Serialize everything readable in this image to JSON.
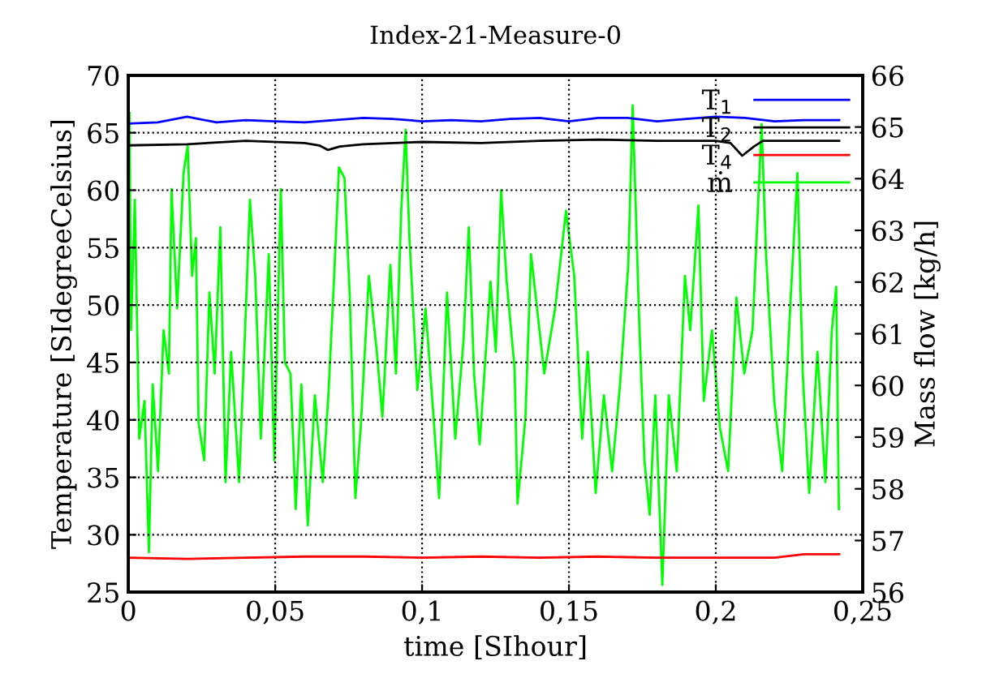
{
  "chart_data": {
    "type": "line",
    "title": "Index-21-Measure-0",
    "xlabel": "time [SIhour]",
    "ylabel": "Temperature [SIdegreeCelsius]",
    "y2label": "Mass flow [kg/h]",
    "xlim": [
      0,
      0.25
    ],
    "xticks": [
      0,
      {
        "value": 0.05,
        "label": "0,05"
      },
      {
        "value": 0.1,
        "label": "0,1"
      },
      {
        "value": 0.15,
        "label": "0,15"
      },
      {
        "value": 0.2,
        "label": "0,2"
      },
      {
        "value": 0.25,
        "label": "0,25"
      }
    ],
    "ylim": [
      25,
      70
    ],
    "yticks": [
      25,
      30,
      35,
      40,
      45,
      50,
      55,
      60,
      65,
      70
    ],
    "y2lim": [
      56,
      66
    ],
    "y2ticks": [
      56,
      57,
      58,
      59,
      60,
      61,
      62,
      63,
      64,
      65,
      66
    ],
    "grid": true,
    "legend": "top right",
    "marker": "none",
    "line_style": "solid",
    "series": [
      {
        "name": "T$_{1}$",
        "color": "#0000ff",
        "x": [
          0,
          0.01,
          0.02,
          0.03,
          0.04,
          0.05,
          0.06,
          0.07,
          0.08,
          0.09,
          0.1,
          0.11,
          0.12,
          0.13,
          0.14,
          0.15,
          0.16,
          0.17,
          0.18,
          0.19,
          0.2,
          0.21,
          0.22,
          0.23,
          0.242
        ],
        "values": [
          65.8,
          65.9,
          66.4,
          65.9,
          66.1,
          66.0,
          65.9,
          66.1,
          66.3,
          66.2,
          66.0,
          66.1,
          66.0,
          66.2,
          66.3,
          66.0,
          66.3,
          66.3,
          66.0,
          66.2,
          66.4,
          66.3,
          66.0,
          66.1,
          66.1
        ]
      },
      {
        "name": "T$_{2}$",
        "color": "#000000",
        "x": [
          0,
          0.02,
          0.04,
          0.06,
          0.065,
          0.068,
          0.072,
          0.08,
          0.1,
          0.12,
          0.14,
          0.16,
          0.18,
          0.2,
          0.205,
          0.209,
          0.213,
          0.216,
          0.22,
          0.242
        ],
        "values": [
          63.9,
          64.0,
          64.3,
          64.1,
          63.9,
          63.5,
          63.8,
          64.0,
          64.2,
          64.1,
          64.3,
          64.4,
          64.3,
          64.3,
          64.1,
          63.0,
          63.8,
          64.3,
          64.3,
          64.3
        ]
      },
      {
        "name": "T$_{4}$",
        "color": "#ff0000",
        "x": [
          0,
          0.02,
          0.04,
          0.06,
          0.08,
          0.1,
          0.12,
          0.14,
          0.16,
          0.18,
          0.2,
          0.22,
          0.23,
          0.242
        ],
        "values": [
          28.0,
          27.9,
          28.0,
          28.1,
          28.1,
          28.0,
          28.1,
          28.0,
          28.1,
          28.0,
          28.0,
          28.0,
          28.3,
          28.3
        ]
      },
      {
        "name": "ṁ",
        "color": "#00ff00",
        "axis": "y2",
        "x": [
          0.0004,
          0.0009,
          0.0022,
          0.0037,
          0.0055,
          0.007,
          0.0083,
          0.0101,
          0.012,
          0.0138,
          0.0147,
          0.0166,
          0.0188,
          0.0202,
          0.0217,
          0.023,
          0.0239,
          0.0258,
          0.0276,
          0.0294,
          0.0313,
          0.0331,
          0.035,
          0.0377,
          0.0396,
          0.0414,
          0.0432,
          0.0451,
          0.0478,
          0.0497,
          0.0519,
          0.0533,
          0.0552,
          0.057,
          0.0589,
          0.0611,
          0.0635,
          0.0662,
          0.0681,
          0.0699,
          0.0717,
          0.0736,
          0.0754,
          0.0773,
          0.0791,
          0.0819,
          0.0846,
          0.0865,
          0.0892,
          0.0911,
          0.0929,
          0.0944,
          0.0957,
          0.0984,
          0.1012,
          0.1039,
          0.1058,
          0.1085,
          0.1113,
          0.1141,
          0.1159,
          0.1177,
          0.1196,
          0.1233,
          0.1251,
          0.1269,
          0.1288,
          0.1315,
          0.1325,
          0.1352,
          0.1371,
          0.1416,
          0.1453,
          0.149,
          0.1518,
          0.1545,
          0.1564,
          0.1591,
          0.1619,
          0.1647,
          0.1674,
          0.1702,
          0.1717,
          0.1739,
          0.1757,
          0.1775,
          0.1794,
          0.1818,
          0.184,
          0.1867,
          0.1895,
          0.1913,
          0.1941,
          0.1959,
          0.1987,
          0.2014,
          0.2042,
          0.207,
          0.2097,
          0.2125,
          0.2143,
          0.2156,
          0.2171,
          0.2199,
          0.2226,
          0.2254,
          0.2278,
          0.2296,
          0.2318,
          0.2346,
          0.2373,
          0.2395,
          0.241,
          0.2419
        ],
        "values": [
          65.27,
          61.07,
          63.59,
          58.97,
          59.7,
          56.77,
          60.02,
          58.34,
          61.07,
          60.23,
          63.8,
          61.49,
          64.11,
          64.64,
          62.12,
          62.85,
          59.28,
          58.55,
          61.8,
          60.23,
          63.06,
          58.13,
          60.65,
          58.13,
          60.86,
          63.59,
          62.12,
          58.97,
          62.54,
          58.55,
          63.8,
          60.44,
          60.23,
          57.61,
          60.02,
          57.29,
          59.81,
          58.13,
          59.81,
          61.91,
          64.22,
          64.01,
          61.7,
          57.82,
          59.18,
          62.12,
          60.65,
          59.39,
          62.33,
          60.23,
          63.38,
          64.95,
          62.85,
          59.91,
          61.49,
          59.39,
          57.82,
          61.8,
          58.97,
          60.86,
          63.06,
          60.23,
          58.86,
          62.01,
          60.65,
          63.78,
          62.01,
          60.33,
          57.71,
          59.39,
          62.54,
          60.23,
          61.49,
          63.38,
          62.12,
          58.97,
          60.65,
          57.92,
          59.81,
          58.34,
          60.02,
          62.33,
          65.42,
          61.28,
          58.55,
          57.5,
          59.81,
          56.14,
          59.81,
          58.34,
          62.12,
          61.07,
          63.48,
          59.7,
          61.07,
          59.18,
          58.34,
          61.7,
          60.23,
          61.07,
          63.38,
          65.06,
          62.54,
          59.7,
          58.34,
          61.59,
          64.11,
          60.23,
          57.92,
          60.65,
          58.13,
          61.07,
          61.91,
          57.61
        ]
      }
    ]
  }
}
